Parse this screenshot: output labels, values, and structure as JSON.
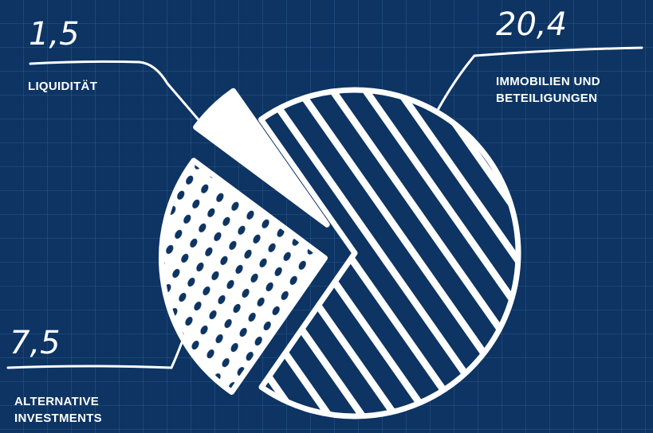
{
  "chart_data": {
    "type": "pie",
    "categories": [
      "IMMOBILIEN UND BETEILIGUNGEN",
      "ALTERNATIVE INVESTMENTS",
      "LIQUIDITÄT"
    ],
    "values": [
      20.4,
      7.5,
      1.5
    ],
    "value_labels": [
      "20,4",
      "7,5",
      "1,5"
    ],
    "color": "#ffffff",
    "background": "#0d3462"
  }
}
